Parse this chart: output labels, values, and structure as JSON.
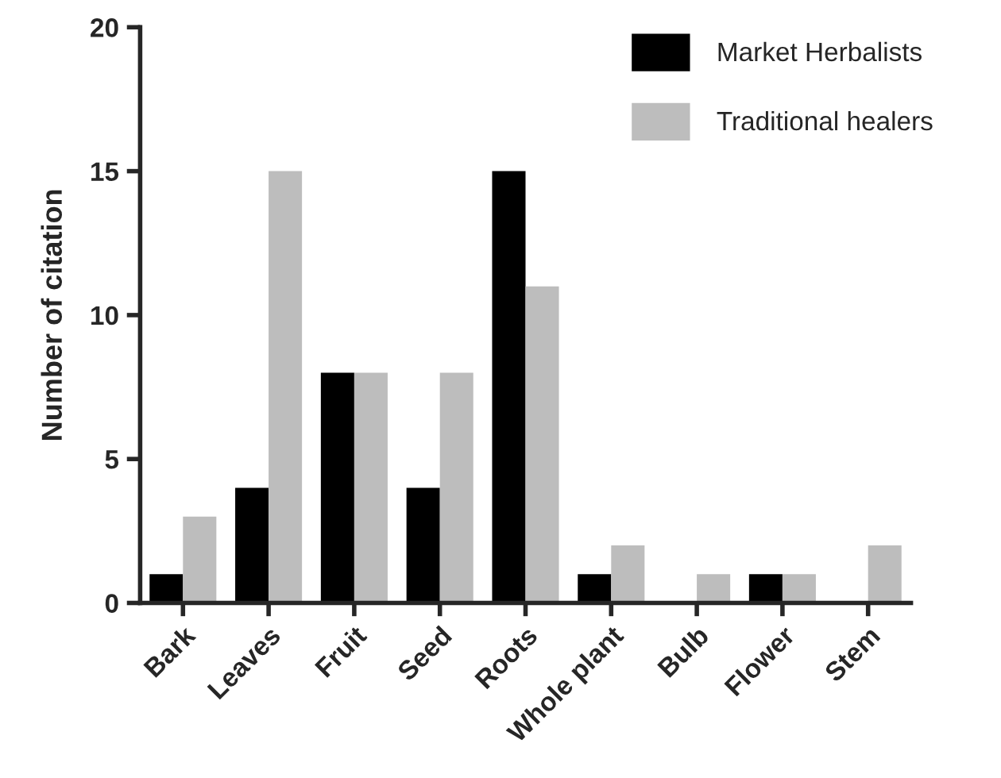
{
  "chart_data": {
    "type": "bar",
    "ylabel": "Number of citation",
    "categories": [
      "Bark",
      "Leaves",
      "Fruit",
      "Seed",
      "Roots",
      "Whole plant",
      "Bulb",
      "Flower",
      "Stem"
    ],
    "series": [
      {
        "name": "Market Herbalists",
        "color": "#000000",
        "values": [
          1,
          4,
          8,
          4,
          15,
          1,
          0,
          1,
          0
        ]
      },
      {
        "name": "Traditional healers",
        "color": "#bdbdbd",
        "values": [
          3,
          15,
          8,
          8,
          11,
          2,
          1,
          1,
          2
        ]
      }
    ],
    "ylim": [
      0,
      20
    ],
    "yticks": [
      0,
      5,
      10,
      15,
      20
    ],
    "grid": false,
    "legend": "top right"
  }
}
